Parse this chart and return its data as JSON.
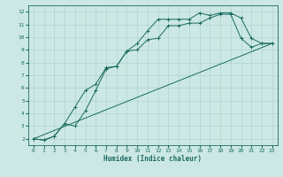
{
  "title": "",
  "xlabel": "Humidex (Indice chaleur)",
  "bg_color": "#cce8e4",
  "grid_color": "#aed4cf",
  "line_color": "#1a6b60",
  "xlim": [
    -0.5,
    23.5
  ],
  "ylim": [
    1.5,
    12.5
  ],
  "xticks": [
    0,
    1,
    2,
    3,
    4,
    5,
    6,
    7,
    8,
    9,
    10,
    11,
    12,
    13,
    14,
    15,
    16,
    17,
    18,
    19,
    20,
    21,
    22,
    23
  ],
  "yticks": [
    2,
    3,
    4,
    5,
    6,
    7,
    8,
    9,
    10,
    11,
    12
  ],
  "line1_x": [
    0,
    1,
    2,
    3,
    4,
    5,
    6,
    7,
    8,
    9,
    10,
    11,
    12,
    13,
    14,
    15,
    16,
    17,
    18,
    19,
    20,
    21,
    22,
    23
  ],
  "line1_y": [
    2.0,
    1.9,
    2.2,
    3.2,
    4.5,
    5.8,
    6.3,
    7.6,
    7.7,
    8.9,
    9.0,
    9.8,
    9.9,
    10.9,
    10.9,
    11.1,
    11.1,
    11.5,
    11.8,
    11.8,
    9.9,
    9.2,
    9.5,
    9.5
  ],
  "line2_x": [
    0,
    1,
    2,
    3,
    4,
    5,
    6,
    7,
    8,
    9,
    10,
    11,
    12,
    13,
    14,
    15,
    16,
    17,
    18,
    19,
    20,
    21,
    22,
    23
  ],
  "line2_y": [
    2.0,
    1.9,
    2.2,
    3.2,
    3.0,
    4.2,
    5.8,
    7.5,
    7.7,
    8.9,
    9.5,
    10.5,
    11.4,
    11.4,
    11.4,
    11.4,
    11.9,
    11.7,
    11.9,
    11.9,
    11.5,
    9.9,
    9.5,
    9.5
  ],
  "line3_x": [
    0,
    23
  ],
  "line3_y": [
    2.0,
    9.5
  ]
}
